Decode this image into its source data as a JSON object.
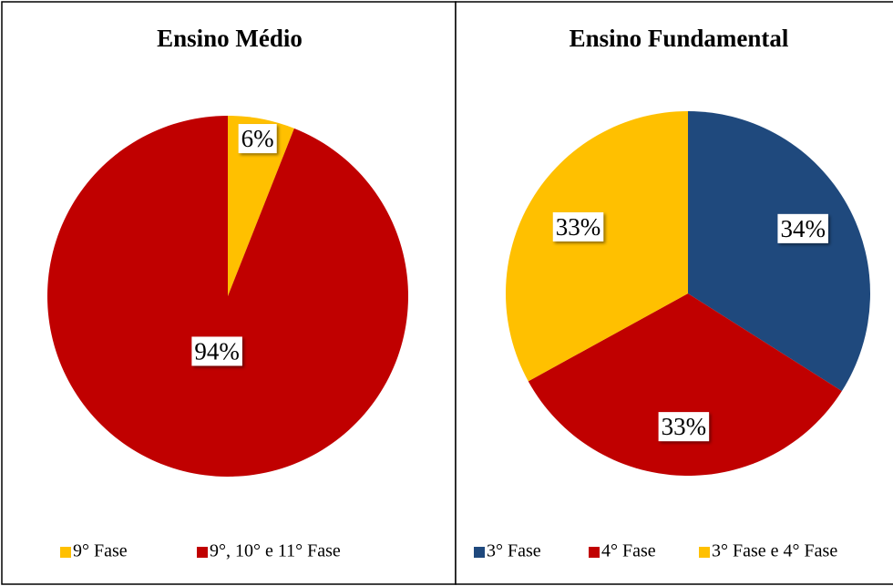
{
  "chart_data": [
    {
      "type": "pie",
      "title": "Ensino Médio",
      "categories": [
        "9° Fase",
        "9°, 10° e 11° Fase"
      ],
      "values": [
        6,
        94
      ],
      "value_labels": [
        "6%",
        "94%"
      ],
      "colors": [
        "#ffc000",
        "#c00000"
      ]
    },
    {
      "type": "pie",
      "title": "Ensino Fundamental",
      "categories": [
        "3° Fase",
        "4° Fase",
        "3° Fase e 4° Fase"
      ],
      "values": [
        34,
        33,
        33
      ],
      "value_labels": [
        "34%",
        "33%",
        "33%"
      ],
      "colors": [
        "#1f497d",
        "#c00000",
        "#ffc000"
      ]
    }
  ]
}
